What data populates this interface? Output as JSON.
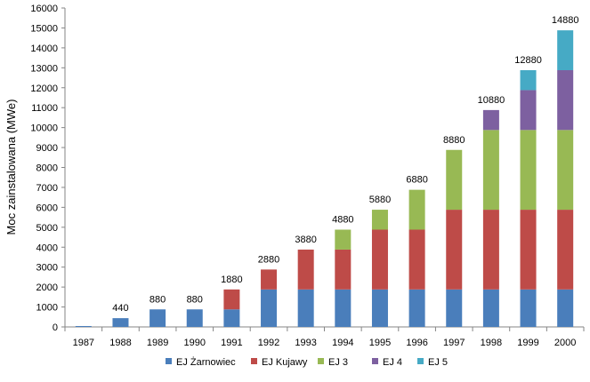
{
  "chart_data": {
    "type": "bar",
    "stacked": true,
    "ylabel": "Moc zainstalowana (MWe)",
    "xlabel": "",
    "title": "",
    "ylim": [
      0,
      16000
    ],
    "yticks": [
      0,
      1000,
      2000,
      3000,
      4000,
      5000,
      6000,
      7000,
      8000,
      9000,
      10000,
      11000,
      12000,
      13000,
      14000,
      15000,
      16000
    ],
    "grid": false,
    "legend_position": "bottom",
    "categories": [
      "1987",
      "1988",
      "1989",
      "1990",
      "1991",
      "1992",
      "1993",
      "1994",
      "1995",
      "1996",
      "1997",
      "1998",
      "1999",
      "2000"
    ],
    "totals": [
      "",
      "440",
      "880",
      "880",
      "1880",
      "2880",
      "3880",
      "4880",
      "5880",
      "6880",
      "8880",
      "10880",
      "12880",
      "14880"
    ],
    "series": [
      {
        "name": "EJ Żarnowiec",
        "color": "#4a7ebb",
        "values": [
          0,
          440,
          880,
          880,
          880,
          1880,
          1880,
          1880,
          1880,
          1880,
          1880,
          1880,
          1880,
          1880
        ]
      },
      {
        "name": "EJ Kujawy",
        "color": "#be4b48",
        "values": [
          0,
          0,
          0,
          0,
          1000,
          1000,
          2000,
          2000,
          3000,
          3000,
          4000,
          4000,
          4000,
          4000
        ]
      },
      {
        "name": "EJ 3",
        "color": "#98b954",
        "values": [
          0,
          0,
          0,
          0,
          0,
          0,
          0,
          1000,
          1000,
          2000,
          3000,
          4000,
          4000,
          4000
        ]
      },
      {
        "name": "EJ 4",
        "color": "#7d60a0",
        "values": [
          0,
          0,
          0,
          0,
          0,
          0,
          0,
          0,
          0,
          0,
          0,
          1000,
          2000,
          3000
        ]
      },
      {
        "name": "EJ 5",
        "color": "#46aac5",
        "values": [
          0,
          0,
          0,
          0,
          0,
          0,
          0,
          0,
          0,
          0,
          0,
          0,
          1000,
          2000
        ]
      }
    ]
  }
}
